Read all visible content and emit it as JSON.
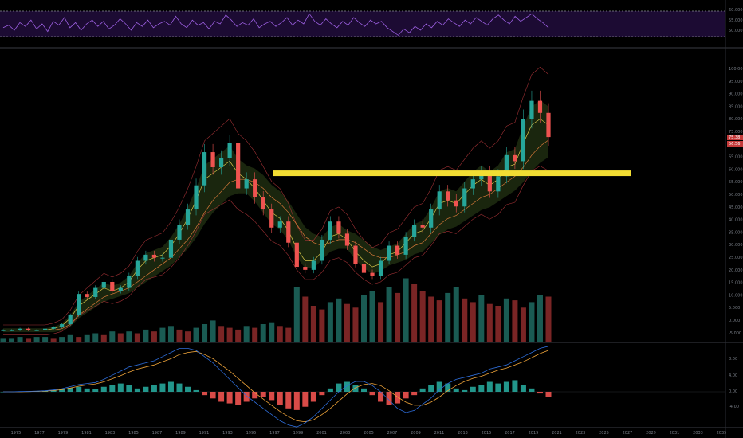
{
  "chart_data": [
    {
      "type": "line",
      "panel": "rsi",
      "series": [
        {
          "values": [
            52,
            54,
            50,
            56,
            53,
            58,
            51,
            55,
            49,
            57,
            54,
            60,
            52,
            56,
            50,
            55,
            58,
            53,
            57,
            51,
            54,
            59,
            55,
            50,
            56,
            53,
            58,
            52,
            55,
            57,
            54,
            61,
            55,
            52,
            58,
            54,
            56,
            51,
            57,
            55,
            62,
            58,
            53,
            56,
            54,
            59,
            52,
            55,
            57,
            53,
            56,
            60,
            54,
            58,
            55,
            63,
            57,
            54,
            59,
            55,
            52,
            57,
            54,
            60,
            56,
            53,
            58,
            55,
            57,
            52,
            49,
            46,
            51,
            48,
            53,
            50,
            55,
            52,
            57,
            54,
            59,
            56,
            53,
            58,
            55,
            60,
            57,
            54,
            59,
            62,
            58,
            55,
            61,
            57,
            60,
            63,
            59,
            56,
            52
          ]
        }
      ],
      "ylim": [
        40,
        70
      ],
      "levels": [
        65,
        45
      ],
      "tick_labels": [
        "60.000",
        "55.000",
        "50.000"
      ],
      "colors": {
        "line": "#9b5fe0",
        "fill": "#1c0b33",
        "levels": "#8a8f98"
      }
    },
    {
      "type": "line",
      "panel": "price",
      "series": [
        {
          "values": [
            8,
            8,
            8.5,
            8,
            8,
            8.5,
            9,
            10,
            13,
            20,
            19,
            22,
            24,
            21,
            22,
            26,
            31,
            33,
            32,
            32,
            38,
            43,
            48,
            56,
            67,
            62,
            65,
            70,
            55,
            58,
            52,
            48,
            42,
            44,
            37,
            29,
            28,
            31,
            38,
            44,
            40,
            36,
            30,
            27,
            26,
            31,
            36,
            33,
            39,
            43,
            42,
            48,
            54,
            51,
            49,
            55,
            58,
            60,
            54,
            59,
            66,
            64,
            78,
            84,
            80,
            72
          ]
        },
        {
          "values": [
            8,
            8,
            8,
            8,
            8,
            8,
            8.5,
            9.5,
            12,
            16,
            18,
            20,
            22,
            21,
            22,
            24,
            28,
            31,
            32,
            33,
            36,
            40,
            45,
            51,
            58,
            60,
            62,
            64,
            60,
            58,
            55,
            51,
            47,
            45,
            41,
            35,
            31,
            31,
            34,
            39,
            40,
            38,
            34,
            31,
            29,
            30,
            33,
            34,
            37,
            40,
            41,
            45,
            50,
            51,
            50,
            53,
            56,
            58,
            56,
            58,
            62,
            63,
            70,
            76,
            78,
            76
          ]
        },
        {
          "values": [
            8,
            8,
            8,
            8,
            8,
            8,
            8,
            8.5,
            10,
            13,
            15,
            17,
            19,
            20,
            21,
            22,
            24,
            26,
            28,
            30,
            32,
            35,
            38,
            42,
            47,
            51,
            54,
            57,
            58,
            58,
            57,
            55,
            52,
            50,
            47,
            43,
            39,
            37,
            36,
            37,
            38,
            38,
            37,
            35,
            33,
            32,
            32,
            33,
            34,
            36,
            37,
            40,
            43,
            45,
            46,
            48,
            50,
            52,
            53,
            55,
            57,
            59,
            62,
            66,
            69,
            71
          ]
        }
      ],
      "ylim": [
        5,
        100
      ],
      "horizontal_line": {
        "value": 60,
        "color": "#f2dd33"
      },
      "current_price_labels": [
        "75.38",
        "56:56"
      ],
      "tick_labels": [
        "100.00",
        "95.000",
        "90.000",
        "85.000",
        "80.000",
        "75.000",
        "70.000",
        "65.000",
        "60.000",
        "55.000",
        "50.000",
        "45.000",
        "40.000",
        "35.000",
        "30.000",
        "25.000",
        "20.000",
        "15.000",
        "10.000",
        "5.000",
        "0.000",
        "-5.000"
      ],
      "colors": {
        "up": "#26a69a",
        "down": "#ef5350",
        "cloud": "#1d2a10",
        "cloud_red": "#3a1010"
      }
    },
    {
      "type": "bar",
      "panel": "volume",
      "values": [
        2,
        2,
        3,
        2,
        3,
        3,
        2,
        3,
        4,
        3,
        4,
        5,
        4,
        6,
        5,
        6,
        5,
        7,
        6,
        8,
        9,
        7,
        6,
        8,
        10,
        12,
        9,
        8,
        7,
        9,
        8,
        10,
        11,
        9,
        8,
        30,
        25,
        20,
        18,
        22,
        24,
        21,
        19,
        26,
        28,
        22,
        30,
        27,
        35,
        32,
        28,
        25,
        23,
        27,
        30,
        24,
        22,
        26,
        21,
        20,
        24,
        23,
        19,
        22,
        26,
        25
      ],
      "ylim": [
        0,
        40
      ]
    },
    {
      "type": "bar",
      "panel": "macd",
      "values": [
        0,
        0,
        0.1,
        0.1,
        0.2,
        0.3,
        0.5,
        0.8,
        1.2,
        1.5,
        1,
        0.8,
        1.5,
        2,
        2.5,
        2,
        1,
        1.5,
        2,
        2.5,
        3,
        2.5,
        1.5,
        0.5,
        -1,
        -2,
        -3,
        -3.5,
        -4,
        -3,
        -2,
        -1.5,
        -2.5,
        -4,
        -5,
        -5.5,
        -4.5,
        -3,
        -1,
        1,
        2.5,
        3,
        2,
        1,
        -1,
        -3,
        -4,
        -3.5,
        -2,
        -1,
        1,
        2,
        3,
        2.5,
        1,
        0.5,
        1.5,
        2,
        3,
        2.5,
        3,
        3.5,
        2,
        1,
        -0.5,
        -1.5
      ],
      "lines": [
        {
          "values": [
            0,
            0,
            0.1,
            0.2,
            0.3,
            0.5,
            0.9,
            1.5,
            2.5,
            3.5,
            4,
            4.5,
            6,
            8,
            10,
            12,
            13,
            14,
            15,
            17,
            19,
            21,
            21,
            20,
            17,
            14,
            10,
            6,
            2,
            -2,
            -5,
            -8,
            -11,
            -14,
            -16,
            -17,
            -15,
            -12,
            -8,
            -4,
            0,
            3,
            5,
            5,
            3,
            0,
            -4,
            -8,
            -10,
            -9,
            -6,
            -3,
            1,
            4,
            6,
            7,
            8,
            9,
            11,
            12,
            13,
            15,
            17,
            19,
            21,
            22
          ]
        },
        {
          "values": [
            0,
            0,
            0,
            0.1,
            0.2,
            0.3,
            0.6,
            1,
            1.8,
            2.7,
            3.3,
            3.8,
            4.8,
            6.3,
            7.8,
            9.5,
            11,
            12,
            13,
            14.5,
            16,
            18,
            19,
            19.5,
            18,
            16,
            13,
            10,
            6.5,
            3,
            -0.5,
            -3.5,
            -6.5,
            -9.5,
            -12,
            -14,
            -14.5,
            -13.5,
            -11,
            -8,
            -4.5,
            -1,
            2,
            3.5,
            4,
            3,
            0.5,
            -2.5,
            -5,
            -6.5,
            -6.5,
            -5,
            -2.5,
            0.5,
            3,
            5,
            6.5,
            7.5,
            9,
            10.5,
            11.5,
            13,
            14.5,
            16.5,
            18.5,
            20
          ]
        }
      ],
      "tick_labels": [
        "8.00",
        "4.00",
        "0.00",
        "-4.00"
      ],
      "colors": {
        "macd": "#2e6dd9",
        "signal": "#f0a53a",
        "pos": "#26a69a",
        "neg": "#ef5350"
      }
    }
  ],
  "x_axis": {
    "years": [
      "1975",
      "1977",
      "1979",
      "1981",
      "1983",
      "1985",
      "1987",
      "1989",
      "1991",
      "1993",
      "1995",
      "1997",
      "1999",
      "2001",
      "2003",
      "2005",
      "2007",
      "2009",
      "2011",
      "2013",
      "2015",
      "2017",
      "2019",
      "2021",
      "2023",
      "2025",
      "2027",
      "2029",
      "2031",
      "2033",
      "2035"
    ]
  }
}
